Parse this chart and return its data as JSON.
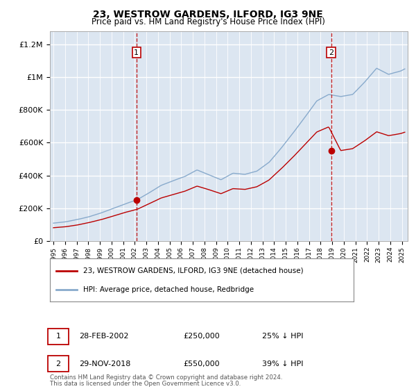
{
  "title": "23, WESTROW GARDENS, ILFORD, IG3 9NE",
  "subtitle": "Price paid vs. HM Land Registry's House Price Index (HPI)",
  "legend_line1": "23, WESTROW GARDENS, ILFORD, IG3 9NE (detached house)",
  "legend_line2": "HPI: Average price, detached house, Redbridge",
  "annotation1_label": "1",
  "annotation1_date": "28-FEB-2002",
  "annotation1_price": "£250,000",
  "annotation1_hpi": "25% ↓ HPI",
  "annotation1_year": 2002.15,
  "annotation1_value": 250000,
  "annotation2_label": "2",
  "annotation2_date": "29-NOV-2018",
  "annotation2_price": "£550,000",
  "annotation2_hpi": "39% ↓ HPI",
  "annotation2_year": 2018.92,
  "annotation2_value": 550000,
  "footer1": "Contains HM Land Registry data © Crown copyright and database right 2024.",
  "footer2": "This data is licensed under the Open Government Licence v3.0.",
  "red_color": "#bb0000",
  "blue_color": "#88aacc",
  "plot_bg": "#dce6f1",
  "ylim_max": 1280000,
  "xlim_start": 1994.7,
  "xlim_end": 2025.5,
  "hpi_base_yearly": [
    110000,
    118000,
    132000,
    150000,
    173000,
    200000,
    228000,
    253000,
    295000,
    340000,
    368000,
    395000,
    435000,
    405000,
    375000,
    415000,
    408000,
    428000,
    480000,
    565000,
    658000,
    755000,
    855000,
    895000,
    882000,
    895000,
    970000,
    1055000,
    1018000,
    1038000,
    1075000
  ],
  "red_base_yearly": [
    82000,
    88000,
    99000,
    114000,
    132000,
    154000,
    176000,
    195000,
    229000,
    264000,
    285000,
    306000,
    337000,
    315000,
    291000,
    322000,
    317000,
    333000,
    373000,
    440000,
    512000,
    588000,
    666000,
    697000,
    553000,
    565000,
    613000,
    668000,
    644000,
    657000,
    681000
  ]
}
